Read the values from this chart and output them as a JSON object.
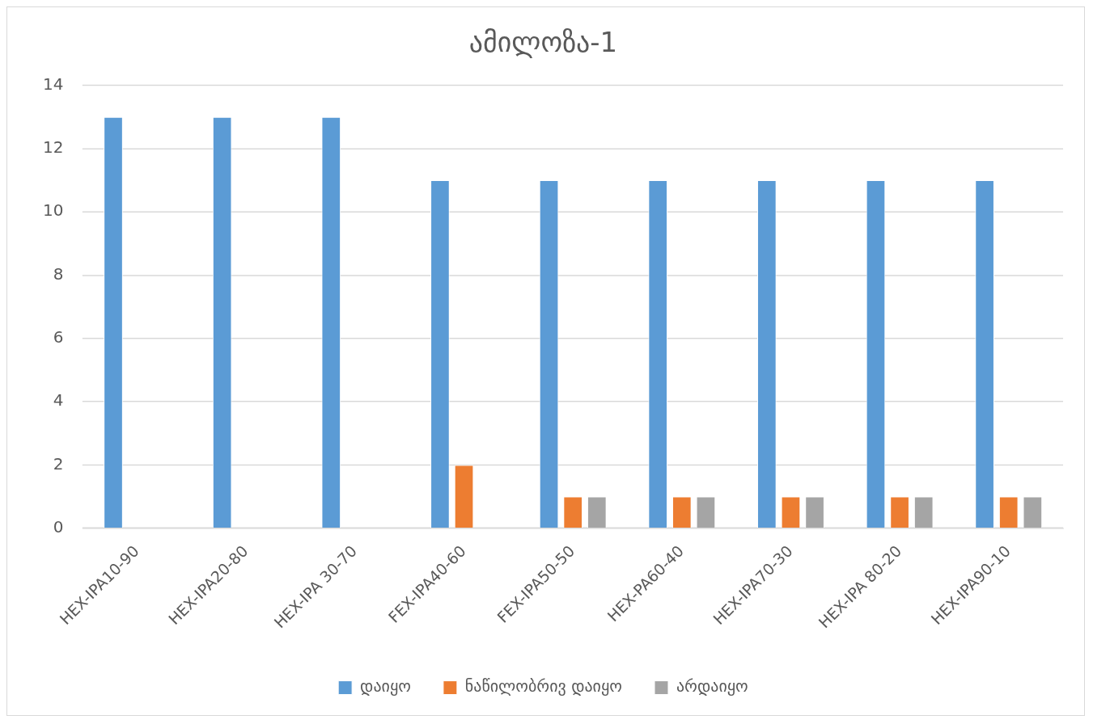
{
  "chart_data": {
    "type": "bar",
    "title": "ამილოზა-1",
    "categories": [
      "HEX-IPA10-90",
      "HEX-IPA20-80",
      "HEX-IPA 30-70",
      "FEX-IPA40-60",
      "FEX-IPA50-50",
      "HEX-PA60-40",
      "HEX-IPA70-30",
      "HEX-IPA 80-20",
      "HEX-IPA90-10"
    ],
    "series": [
      {
        "name": "დაიყო",
        "color": "#5b9bd5",
        "values": [
          13,
          13,
          13,
          11,
          11,
          11,
          11,
          11,
          11
        ]
      },
      {
        "name": "ნაწილობრივ დაიყო",
        "color": "#ed7d31",
        "values": [
          null,
          null,
          null,
          2,
          1,
          1,
          1,
          1,
          1
        ]
      },
      {
        "name": "არდაიყო",
        "color": "#a5a5a5",
        "values": [
          null,
          null,
          null,
          null,
          1,
          1,
          1,
          1,
          1
        ]
      }
    ],
    "ylim": [
      0,
      14
    ],
    "yticks": [
      0,
      2,
      4,
      6,
      8,
      10,
      12,
      14
    ],
    "grid": "y",
    "legend": "bottom"
  }
}
